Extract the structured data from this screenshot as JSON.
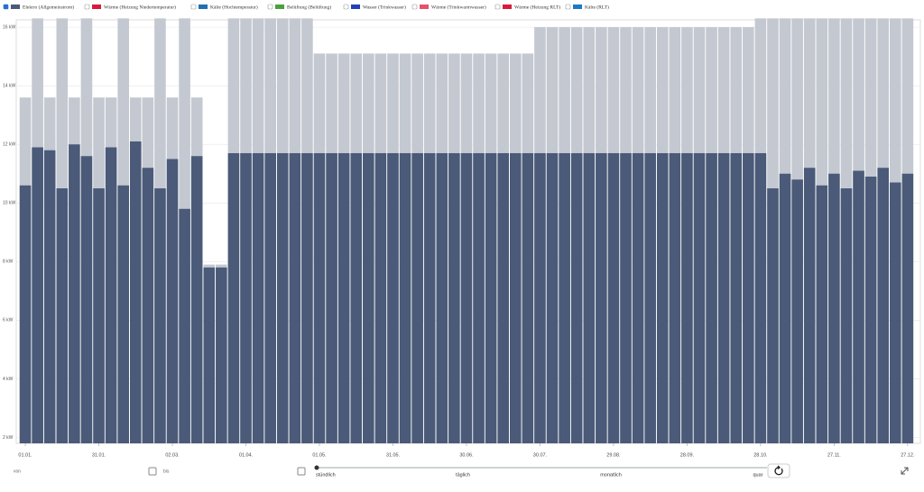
{
  "legend": [
    {
      "label": "Elektro (Allgemeinstrom)",
      "color": "#4a5a78",
      "checked": true
    },
    {
      "label": "Wärme (Heizung Niedertemperatur)",
      "color": "#d81b3c",
      "checked": false
    },
    {
      "label": "Kälte (Hochtemperatur)",
      "color": "#1f6fb2",
      "checked": false
    },
    {
      "label": "Belüftung (Belüftung)",
      "color": "#4c9f3f",
      "checked": false
    },
    {
      "label": "Wasser (Trinkwasser)",
      "color": "#2340b8",
      "checked": false
    },
    {
      "label": "Wärme (Trinkwarmwasser)",
      "color": "#e8506b",
      "checked": false
    },
    {
      "label": "Wärme (Heizung RLT)",
      "color": "#d81b3c",
      "checked": false
    },
    {
      "label": "Kälte (RLT)",
      "color": "#1a7ac4",
      "checked": false
    }
  ],
  "chart_data": {
    "type": "bar",
    "x": [
      0,
      5,
      10,
      15,
      20,
      25,
      30,
      35,
      40,
      45,
      50,
      55,
      60,
      65,
      70,
      75,
      80,
      85,
      90,
      95,
      100,
      105,
      110,
      115,
      120,
      125,
      130,
      135,
      140,
      145,
      150,
      155,
      160,
      165,
      170,
      175,
      180,
      185,
      190,
      195,
      200,
      205,
      210,
      215,
      220,
      225,
      230,
      235,
      240,
      245,
      250,
      255,
      260,
      265,
      270,
      275,
      280,
      285,
      290,
      295,
      300,
      305,
      310,
      315,
      320,
      325,
      330,
      335,
      340,
      345,
      350,
      355,
      360
    ],
    "series": [
      {
        "color": "#c3c8d1",
        "values": [
          13.6,
          16.3,
          13.6,
          16.3,
          13.6,
          16.3,
          13.6,
          13.6,
          16.3,
          13.6,
          13.6,
          16.3,
          13.6,
          16.3,
          13.6,
          7.9,
          7.9,
          16.3,
          16.3,
          16.3,
          16.3,
          16.3,
          16.3,
          16.3,
          15.1,
          15.1,
          15.1,
          15.1,
          15.1,
          15.1,
          15.1,
          15.1,
          15.1,
          15.1,
          15.1,
          15.1,
          15.1,
          15.1,
          15.1,
          15.1,
          15.1,
          15.1,
          16.0,
          16.0,
          16.0,
          16.0,
          16.0,
          16.0,
          16.0,
          16.0,
          16.0,
          16.0,
          16.0,
          16.0,
          16.0,
          16.0,
          16.0,
          16.0,
          16.0,
          16.0,
          16.3,
          16.3,
          16.3,
          16.3,
          16.3,
          16.3,
          16.3,
          16.3,
          16.3,
          16.3,
          16.3,
          16.3,
          16.3
        ]
      },
      {
        "color": "#4a5a78",
        "values": [
          10.6,
          11.9,
          11.8,
          10.5,
          12.0,
          11.6,
          10.5,
          11.9,
          10.6,
          12.1,
          11.2,
          10.5,
          11.5,
          9.8,
          11.6,
          7.8,
          7.8,
          11.7,
          11.7,
          11.7,
          11.7,
          11.7,
          11.7,
          11.7,
          11.7,
          11.7,
          11.7,
          11.7,
          11.7,
          11.7,
          11.7,
          11.7,
          11.7,
          11.7,
          11.7,
          11.7,
          11.7,
          11.7,
          11.7,
          11.7,
          11.7,
          11.7,
          11.7,
          11.7,
          11.7,
          11.7,
          11.7,
          11.7,
          11.7,
          11.7,
          11.7,
          11.7,
          11.7,
          11.7,
          11.7,
          11.7,
          11.7,
          11.7,
          11.7,
          11.7,
          11.7,
          10.5,
          11.0,
          10.8,
          11.2,
          10.6,
          11.0,
          10.5,
          11.1,
          10.9,
          11.2,
          10.7,
          11.0
        ]
      }
    ],
    "xlim": [
      -3.7,
      365.2
    ],
    "xticks": [
      {
        "value": 0,
        "label": "01.01."
      },
      {
        "value": 30,
        "label": "31.01."
      },
      {
        "value": 60,
        "label": "02.03."
      },
      {
        "value": 90,
        "label": "01.04."
      },
      {
        "value": 120,
        "label": "01.05."
      },
      {
        "value": 150,
        "label": "31.05."
      },
      {
        "value": 180,
        "label": "30.06."
      },
      {
        "value": 210,
        "label": "30.07."
      },
      {
        "value": 240,
        "label": "29.08."
      },
      {
        "value": 270,
        "label": "28.09."
      },
      {
        "value": 300,
        "label": "28.10."
      },
      {
        "value": 330,
        "label": "27.11."
      },
      {
        "value": 360,
        "label": "27.12."
      }
    ],
    "ylim": [
      1.8,
      16.25
    ],
    "yticks": [
      {
        "value": 2,
        "label": "2 kW"
      },
      {
        "value": 4,
        "label": "4 kW"
      },
      {
        "value": 6,
        "label": "6 kW"
      },
      {
        "value": 8,
        "label": "8 kW"
      },
      {
        "value": 10,
        "label": "10 kW"
      },
      {
        "value": 12,
        "label": "12 kW"
      },
      {
        "value": 14,
        "label": "14 kW"
      },
      {
        "value": 16,
        "label": "16 kW"
      }
    ],
    "grid": true
  },
  "controls": {
    "from": "von",
    "to": "bis",
    "resolutions": [
      "stündlich",
      "täglich",
      "monatlich",
      "quar"
    ]
  }
}
